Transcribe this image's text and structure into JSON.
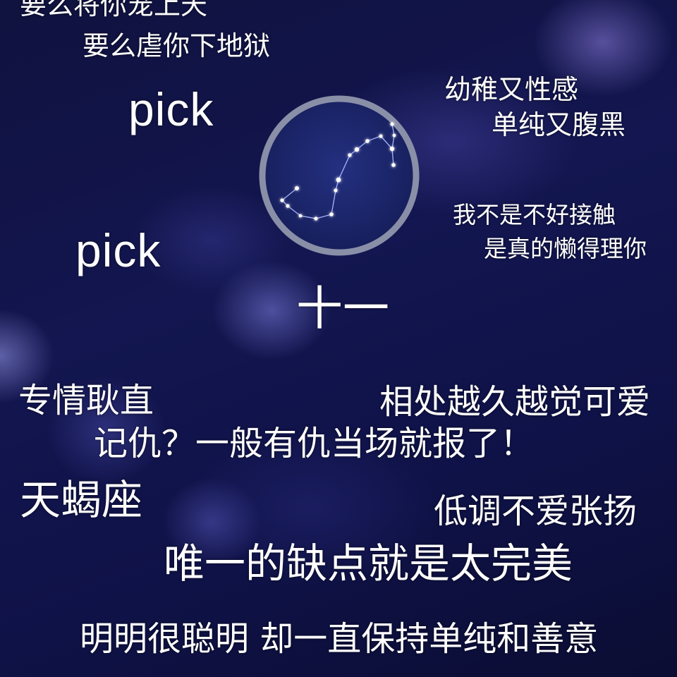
{
  "texts": {
    "top_line1": "要么将你宠上天",
    "top_line2": "要么虐你下地狱",
    "pick1": "pick",
    "pick2": "pick",
    "right1_line1": "幼稚又性感",
    "right1_line2": "单纯又腹黑",
    "right2_line1": "我不是不好接触",
    "right2_line2": "是真的懒得理你",
    "number": "十一",
    "trait1": "专情耿直",
    "trait2": "相处越久越觉可爱",
    "trait3": "记仇？一般有仇当场就报了！",
    "sign_name": "天蝎座",
    "trait4": "低调不爱张扬",
    "trait5": "唯一的缺点就是太完美",
    "trait6": "明明很聪明 却一直保持单纯和善意"
  },
  "badge": {
    "icon": "scorpius-constellation-icon",
    "colors": {
      "ring": "#8a8fa8",
      "inner": "#1a2366",
      "star": "#ffffff",
      "glow": "#6f8bff"
    }
  },
  "colors": {
    "background": "#11144a",
    "text": "#ffffff"
  }
}
